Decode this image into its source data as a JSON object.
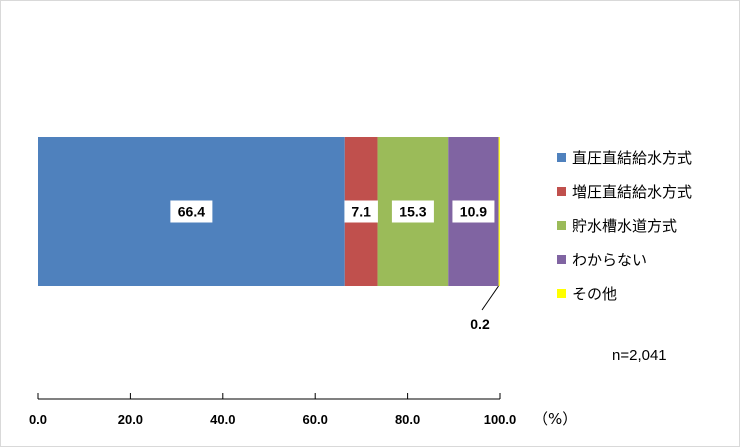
{
  "chart_data": {
    "type": "bar",
    "orientation": "horizontal",
    "stacked": true,
    "categories": [
      ""
    ],
    "series": [
      {
        "name": "直圧直結給水方式",
        "values": [
          66.4
        ],
        "color": "#4f81bd",
        "data_label": "66.4"
      },
      {
        "name": "増圧直結給水方式",
        "values": [
          7.1
        ],
        "color": "#c0504d",
        "data_label": "7.1"
      },
      {
        "name": "貯水槽水道方式",
        "values": [
          15.3
        ],
        "color": "#9bbb59",
        "data_label": "15.3"
      },
      {
        "name": "わからない",
        "values": [
          10.9
        ],
        "color": "#8064a2",
        "data_label": "10.9"
      },
      {
        "name": "その他",
        "values": [
          0.2
        ],
        "color": "#ffff00",
        "data_label": "0.2"
      }
    ],
    "xlim": [
      0,
      100
    ],
    "xticks": [
      "0.0",
      "20.0",
      "40.0",
      "60.0",
      "80.0",
      "100.0"
    ],
    "x_unit": "（%）",
    "grid": false,
    "legend_position": "right",
    "sample_note": "n=2,041"
  }
}
